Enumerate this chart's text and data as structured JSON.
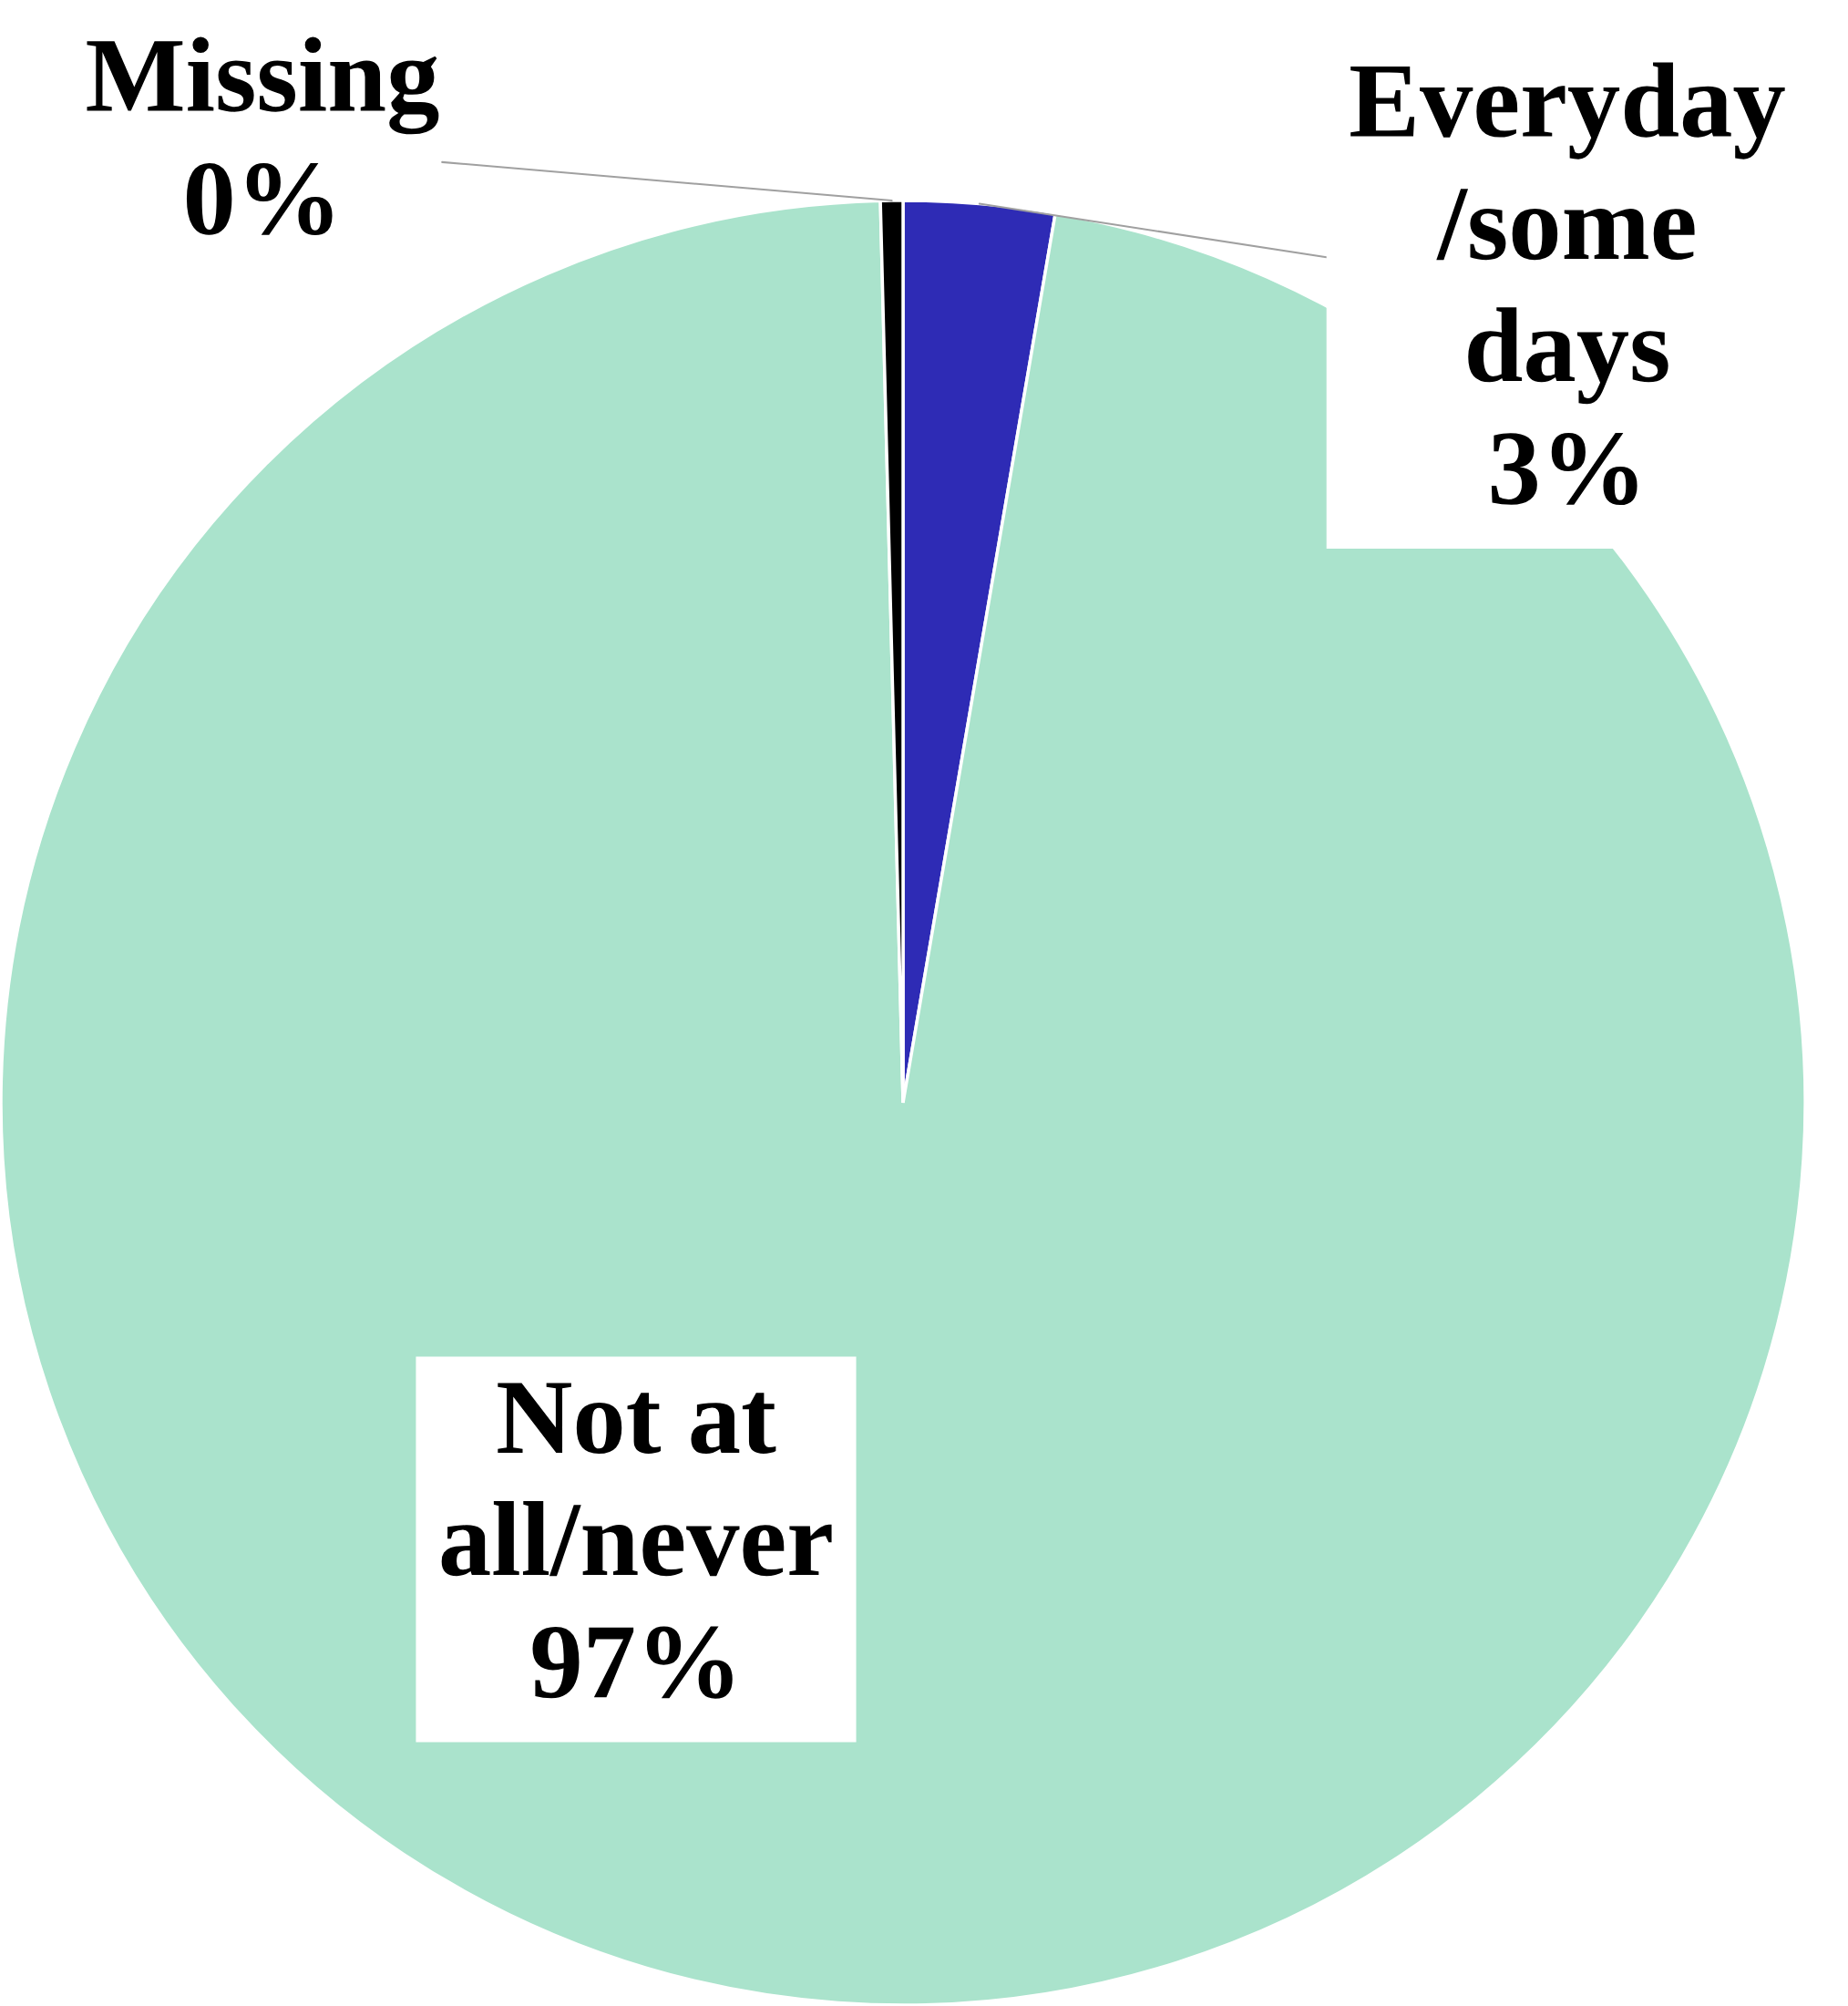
{
  "chart_data": {
    "type": "pie",
    "categories": [
      "Everyday\n/some\ndays",
      "Not at\nall/never",
      "Missing"
    ],
    "values": [
      2.7,
      96.9,
      0.4
    ],
    "value_labels": [
      "3%",
      "97%",
      "0%"
    ],
    "colors": [
      "#2e2bb5",
      "#aae3cc",
      "#000000"
    ]
  }
}
